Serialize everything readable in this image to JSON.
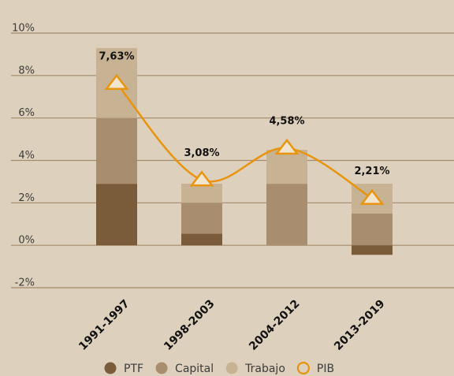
{
  "chart_data": {
    "type": "bar",
    "categories": [
      "1991-1997",
      "1998-2003",
      "2004-2012",
      "2013-2019"
    ],
    "series": [
      {
        "name": "PTF",
        "color": "#7b5c3a",
        "values": [
          2.9,
          0.55,
          0,
          -0.45
        ]
      },
      {
        "name": "Capital",
        "color": "#a88e6e",
        "values": [
          3.1,
          1.45,
          2.9,
          1.5
        ]
      },
      {
        "name": "Trabajo",
        "color": "#c7b393",
        "values": [
          3.3,
          0.9,
          1.6,
          1.4
        ]
      },
      {
        "name": "PIB",
        "type": "line",
        "color": "#e8940f",
        "values": [
          7.63,
          3.08,
          4.58,
          2.21
        ],
        "value_labels": [
          "7,63%",
          "3,08%",
          "4,58%",
          "2,21%"
        ]
      }
    ],
    "ylim": [
      -2,
      10
    ],
    "yticks": [
      {
        "value": -2,
        "label": "-2%"
      },
      {
        "value": 0,
        "label": "0%"
      },
      {
        "value": 2,
        "label": "2%"
      },
      {
        "value": 4,
        "label": "4%"
      },
      {
        "value": 6,
        "label": "6%"
      },
      {
        "value": 8,
        "label": "8%"
      },
      {
        "value": 10,
        "label": "10%"
      }
    ],
    "grid": true,
    "legend": "bottom"
  }
}
